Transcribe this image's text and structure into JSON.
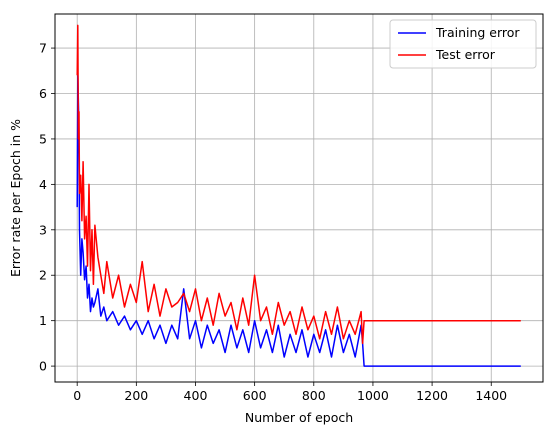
{
  "chart_data": {
    "type": "line",
    "xlabel": "Number of epoch",
    "ylabel": "Error rate per Epoch in %",
    "xlim": [
      -75,
      1575
    ],
    "ylim": [
      -0.35,
      7.75
    ],
    "x_ticks": [
      "0",
      "200",
      "400",
      "600",
      "800",
      "1000",
      "1200",
      "1400"
    ],
    "x_tick_values": [
      0,
      200,
      400,
      600,
      800,
      1000,
      1200,
      1400
    ],
    "y_ticks": [
      "0",
      "1",
      "2",
      "3",
      "4",
      "5",
      "6",
      "7"
    ],
    "y_tick_values": [
      0,
      1,
      2,
      3,
      4,
      5,
      6,
      7
    ],
    "grid": true,
    "legend_position": "top-right",
    "series": [
      {
        "name": "Training error",
        "color": "#0000ff",
        "x": [
          0,
          2,
          5,
          8,
          12,
          16,
          20,
          25,
          30,
          35,
          40,
          45,
          50,
          55,
          60,
          70,
          80,
          90,
          100,
          120,
          140,
          160,
          180,
          200,
          220,
          240,
          260,
          280,
          300,
          320,
          340,
          360,
          380,
          400,
          420,
          440,
          460,
          480,
          500,
          520,
          540,
          560,
          580,
          600,
          620,
          640,
          660,
          680,
          700,
          720,
          740,
          760,
          780,
          800,
          820,
          840,
          860,
          880,
          900,
          920,
          940,
          960,
          965,
          970,
          1000,
          1200,
          1400,
          1500
        ],
        "values": [
          3.5,
          6.4,
          5.5,
          3.0,
          2.0,
          2.8,
          2.5,
          1.9,
          2.2,
          1.5,
          1.8,
          1.2,
          1.5,
          1.3,
          1.4,
          1.7,
          1.1,
          1.3,
          1.0,
          1.2,
          0.9,
          1.1,
          0.8,
          1.0,
          0.7,
          1.0,
          0.6,
          0.9,
          0.5,
          0.9,
          0.6,
          1.7,
          0.6,
          1.0,
          0.4,
          0.9,
          0.5,
          0.8,
          0.3,
          0.9,
          0.4,
          0.8,
          0.3,
          1.0,
          0.4,
          0.8,
          0.3,
          0.9,
          0.2,
          0.7,
          0.3,
          0.8,
          0.2,
          0.7,
          0.3,
          0.8,
          0.2,
          0.9,
          0.3,
          0.7,
          0.2,
          0.9,
          0.5,
          0.0,
          0.0,
          0.0,
          0.0,
          0.0
        ]
      },
      {
        "name": "Test error",
        "color": "#ff0000",
        "x": [
          0,
          2,
          4,
          6,
          8,
          12,
          16,
          20,
          25,
          30,
          35,
          40,
          45,
          50,
          55,
          60,
          70,
          80,
          90,
          100,
          120,
          140,
          160,
          180,
          200,
          220,
          240,
          260,
          280,
          300,
          320,
          340,
          360,
          380,
          400,
          420,
          440,
          460,
          480,
          500,
          520,
          540,
          560,
          580,
          600,
          620,
          640,
          660,
          680,
          700,
          720,
          740,
          760,
          780,
          800,
          820,
          840,
          860,
          880,
          900,
          920,
          940,
          960,
          965,
          970,
          1000,
          1200,
          1400,
          1500
        ],
        "values": [
          6.4,
          7.5,
          5.0,
          5.6,
          3.8,
          4.2,
          3.2,
          4.5,
          2.8,
          3.3,
          2.2,
          4.0,
          2.1,
          3.0,
          1.8,
          3.1,
          2.4,
          2.0,
          1.6,
          2.3,
          1.5,
          2.0,
          1.3,
          1.8,
          1.4,
          2.3,
          1.2,
          1.8,
          1.1,
          1.7,
          1.3,
          1.4,
          1.6,
          1.2,
          1.7,
          1.0,
          1.5,
          0.9,
          1.6,
          1.1,
          1.4,
          0.8,
          1.5,
          0.9,
          2.0,
          1.0,
          1.3,
          0.7,
          1.4,
          0.9,
          1.2,
          0.7,
          1.3,
          0.8,
          1.1,
          0.6,
          1.2,
          0.7,
          1.3,
          0.6,
          1.0,
          0.7,
          1.2,
          0.5,
          1.0,
          1.0,
          1.0,
          1.0,
          1.0
        ]
      }
    ]
  }
}
